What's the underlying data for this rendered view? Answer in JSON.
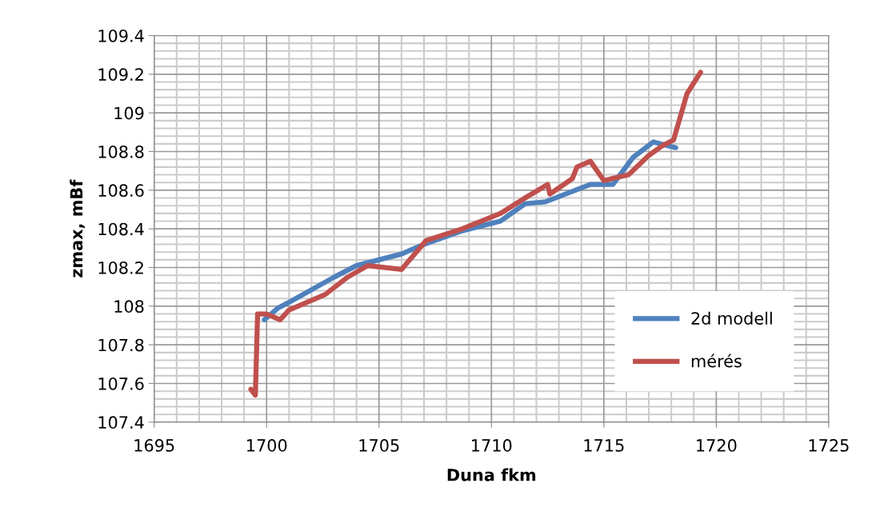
{
  "chart_data": {
    "type": "line",
    "xlabel": "Duna fkm",
    "ylabel": "zmax, mBf",
    "xlim": [
      1695,
      1725
    ],
    "xticks": [
      1695,
      1700,
      1705,
      1710,
      1715,
      1720,
      1725
    ],
    "ylim": [
      107.4,
      109.4
    ],
    "yticks": [
      107.4,
      107.6,
      107.8,
      {
        "value": 108,
        "label": "108"
      },
      108.2,
      108.4,
      108.6,
      108.8,
      {
        "value": 109,
        "label": "109"
      },
      109.2,
      109.4
    ],
    "grid": true,
    "legend": "bottom right",
    "marker": "none",
    "line_style": "solid",
    "series": [
      {
        "name": "2d modell",
        "color": "#4f81bd",
        "x": [
          1699.9,
          1700.5,
          1701,
          1703,
          1704,
          1706,
          1707,
          1708.7,
          1710.4,
          1711.5,
          1712.4,
          1714.4,
          1715.4,
          1716.3,
          1717.2,
          1718.2
        ],
        "values": [
          107.93,
          107.99,
          108.02,
          108.15,
          108.21,
          108.27,
          108.32,
          108.39,
          108.44,
          108.53,
          108.54,
          108.63,
          108.63,
          108.77,
          108.85,
          108.82
        ]
      },
      {
        "name": "mérés",
        "color": "#c0504d",
        "x": [
          1699.3,
          1699.5,
          1699.6,
          1700.0,
          1700.6,
          1701.0,
          1702.6,
          1703.6,
          1704.5,
          1706.0,
          1707.1,
          1708.7,
          1710.4,
          1711.5,
          1712.5,
          1712.6,
          1713.6,
          1713.8,
          1714.4,
          1715.0,
          1716.1,
          1717.0,
          1717.6,
          1718.1,
          1718.7,
          1719.3
        ],
        "values": [
          107.57,
          107.54,
          107.96,
          107.96,
          107.93,
          107.98,
          108.06,
          108.15,
          108.21,
          108.19,
          108.34,
          108.4,
          108.48,
          108.56,
          108.63,
          108.58,
          108.66,
          108.72,
          108.75,
          108.65,
          108.68,
          108.78,
          108.83,
          108.86,
          109.1,
          109.21
        ]
      }
    ]
  }
}
